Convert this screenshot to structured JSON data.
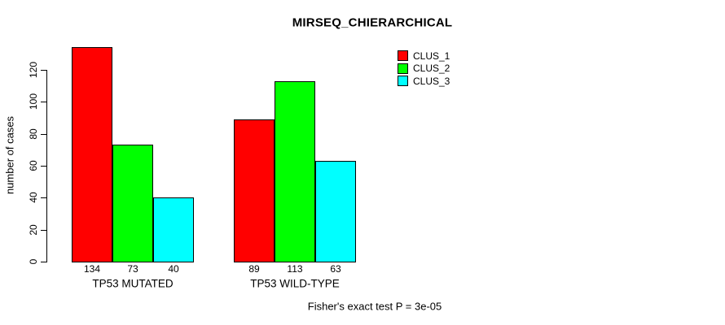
{
  "title": "MIRSEQ_CHIERARCHICAL",
  "footnote": "Fisher's exact test P = 3e-05",
  "y_axis": {
    "label": "number of cases"
  },
  "legend": {
    "entries": [
      "CLUS_1",
      "CLUS_2",
      "CLUS_3"
    ]
  },
  "colors": {
    "background": "#ffffff",
    "text": "#000000",
    "bar_border": "#000000",
    "clus_1": "#ff0000",
    "clus_2": "#00ff00",
    "clus_3": "#00ffff"
  },
  "chart_data": {
    "type": "bar",
    "title": "MIRSEQ_CHIERARCHICAL",
    "xlabel": "",
    "ylabel": "number of cases",
    "categories": [
      "TP53 MUTATED",
      "TP53 WILD-TYPE"
    ],
    "series": [
      {
        "name": "CLUS_1",
        "color": "#ff0000",
        "values": [
          134,
          89
        ]
      },
      {
        "name": "CLUS_2",
        "color": "#00ff00",
        "values": [
          73,
          113
        ]
      },
      {
        "name": "CLUS_3",
        "color": "#00ffff",
        "values": [
          40,
          63
        ]
      }
    ],
    "bar_value_labels": [
      [
        "134",
        "73",
        "40"
      ],
      [
        "89",
        "113",
        "63"
      ]
    ],
    "yticks": [
      0,
      20,
      40,
      60,
      80,
      100,
      120
    ],
    "ylim": [
      0,
      136
    ],
    "grid": false,
    "legend_position": "top-right",
    "annotation": "Fisher's exact test P = 3e-05"
  }
}
